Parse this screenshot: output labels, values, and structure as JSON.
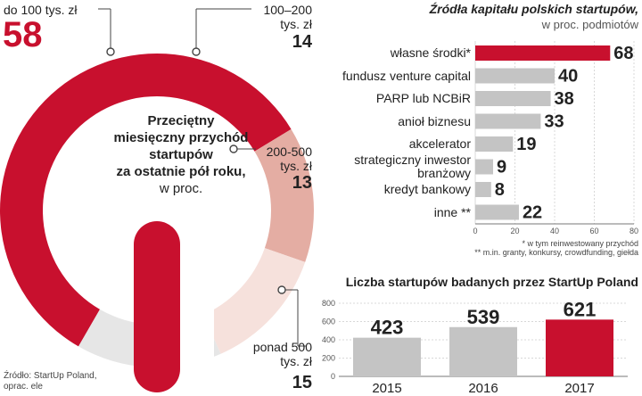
{
  "donut": {
    "title_bold": [
      "Przeciętny",
      "miesięczny przychód",
      "startupów",
      "za ostatnie pół roku,"
    ],
    "title_unit": "w proc.",
    "source": [
      "Źródło: StartUp Poland,",
      "oprac. ele"
    ],
    "colors": {
      "dark": "#c8102e",
      "s2": "#e4ada3",
      "s3": "#f6e1dc",
      "s4": "#e6e6e6"
    }
  },
  "chart_data": [
    {
      "type": "pie",
      "title": "Przeciętny miesięczny przychód startupów za ostatnie pół roku, w proc.",
      "categories": [
        "do 100 tys. zł",
        "100–200 tys. zł",
        "200-500 tys. zł",
        "ponad 500 tys. zł"
      ],
      "labels_lines": [
        [
          "do 100 tys. zł"
        ],
        [
          "100–200",
          "tys. zł"
        ],
        [
          "200-500",
          "tys. zł"
        ],
        [
          "ponad 500",
          "tys. zł"
        ]
      ],
      "values": [
        58,
        14,
        13,
        15
      ]
    },
    {
      "type": "bar",
      "orientation": "horizontal",
      "title": "Źródła kapitału polskich startupów,",
      "subtitle": "w proc. podmiotów",
      "categories": [
        "własne środki*",
        "fundusz venture capital",
        "PARP lub NCBiR",
        "anioł biznesu",
        "akcelerator",
        "strategiczny inwestor branżowy",
        "kredyt bankowy",
        "inne **"
      ],
      "labels_lines": [
        [
          "własne środki*"
        ],
        [
          "fundusz venture capital"
        ],
        [
          "PARP lub NCBiR"
        ],
        [
          "anioł biznesu"
        ],
        [
          "akcelerator"
        ],
        [
          "strategiczny inwestor",
          "branżowy"
        ],
        [
          "kredyt bankowy"
        ],
        [
          "inne **"
        ]
      ],
      "values": [
        68,
        40,
        38,
        33,
        19,
        9,
        8,
        22
      ],
      "xlim": [
        0,
        80
      ],
      "ticks": [
        "0",
        "20",
        "40",
        "60",
        "80"
      ],
      "footnotes": [
        "* w tym reinwestowany przychód",
        "** m.in. granty, konkursy, crowdfunding, giełda"
      ],
      "colors": {
        "highlight": "#c8102e",
        "bar": "#c4c4c4"
      }
    },
    {
      "type": "bar",
      "title": "Liczba startupów badanych przez StartUp Poland",
      "categories": [
        "2015",
        "2016",
        "2017"
      ],
      "values": [
        423,
        539,
        621
      ],
      "ylim": [
        0,
        800
      ],
      "ticks": [
        "0",
        "200",
        "400",
        "600",
        "800"
      ],
      "colors": {
        "highlight": "#c8102e",
        "bar": "#c4c4c4"
      }
    }
  ]
}
